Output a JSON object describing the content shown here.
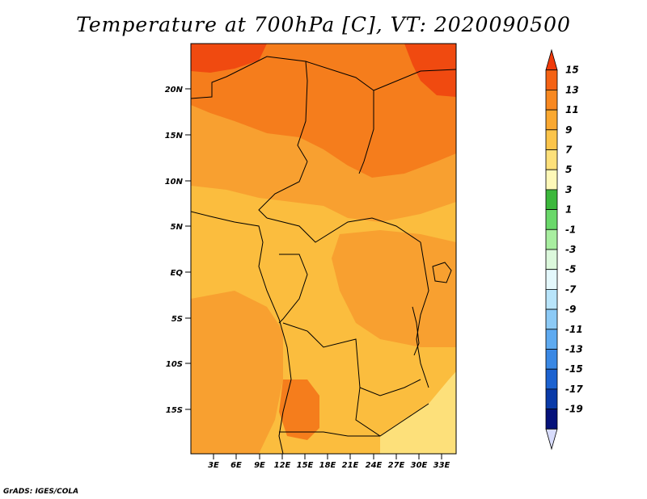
{
  "title": "Temperature at 700hPa [C], VT: 2020090500",
  "footer": "GrADS: IGES/COLA",
  "map": {
    "lat_ticks": [
      "20N",
      "15N",
      "10N",
      "5N",
      "EQ",
      "5S",
      "10S",
      "15S"
    ],
    "lon_ticks": [
      "3E",
      "6E",
      "9E",
      "12E",
      "15E",
      "18E",
      "21E",
      "24E",
      "27E",
      "30E",
      "33E"
    ],
    "colors": {
      "t7": "#fbbd3e",
      "t9": "#f8a030",
      "t11": "#f57d1c",
      "t13": "#f04a10",
      "t5": "#fde07a",
      "border": "#000000"
    }
  },
  "colorbar": {
    "labels": [
      "15",
      "13",
      "11",
      "9",
      "7",
      "5",
      "3",
      "1",
      "-1",
      "-3",
      "-5",
      "-7",
      "-9",
      "-11",
      "-13",
      "-15",
      "-17",
      "-19"
    ],
    "colors": [
      "#f03a0a",
      "#f46214",
      "#f88820",
      "#faa830",
      "#fbc44a",
      "#fde07a",
      "#fef8b8",
      "#3cb83c",
      "#6ad86a",
      "#a8eea0",
      "#dcf8dc",
      "#e4f8fc",
      "#b8e4fa",
      "#8ccaf6",
      "#5eaaf0",
      "#3a88e4",
      "#1c62d0",
      "#0a3aa8",
      "#06127a",
      "#d8dcfc"
    ]
  }
}
